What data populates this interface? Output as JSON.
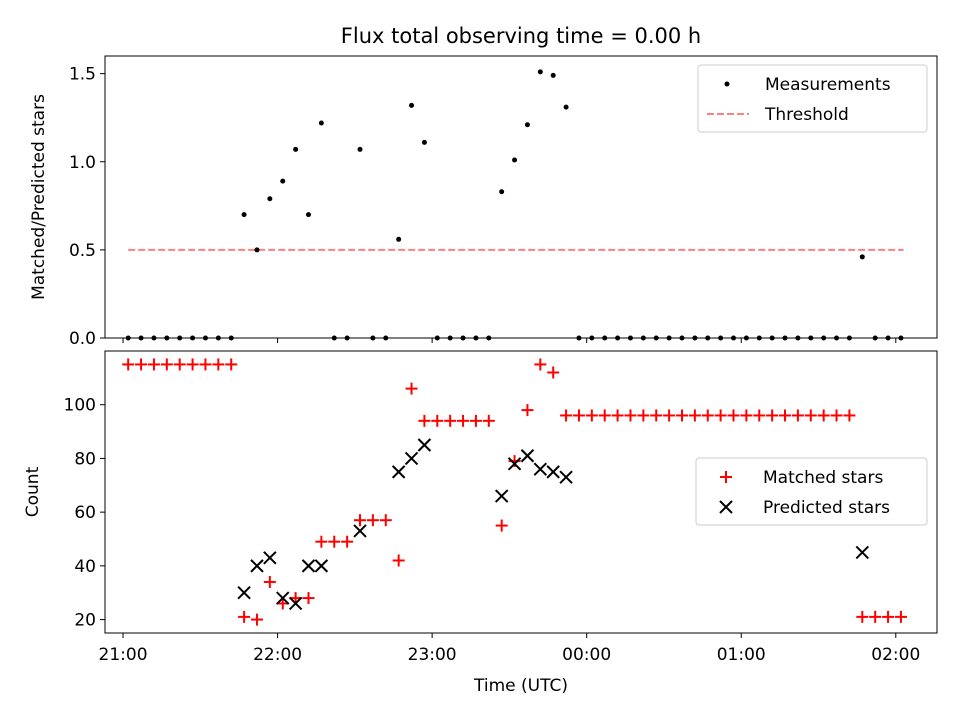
{
  "figure": {
    "title": "Flux total observing time = 0.00 h",
    "xlabel": "Time (UTC)"
  },
  "colors": {
    "measurements": "#000000",
    "threshold": "#ff7f7f",
    "matched": "#ff0000",
    "predicted": "#000000"
  },
  "chart_data": [
    {
      "type": "scatter",
      "ylabel": "Matched/Predicted stars",
      "xlim": [
        "20:53",
        "02:16"
      ],
      "ylim": [
        0,
        1.6
      ],
      "yticks": [
        0.0,
        0.5,
        1.0,
        1.5
      ],
      "ytick_labels": [
        "0.0",
        "0.5",
        "1.0",
        "1.5"
      ],
      "legend": {
        "position": "upper right",
        "entries": [
          "Measurements",
          "Threshold"
        ]
      },
      "series": [
        {
          "name": "Measurements",
          "marker": "dot",
          "points": [
            [
              "21:02",
              0
            ],
            [
              "21:07",
              0
            ],
            [
              "21:12",
              0
            ],
            [
              "21:17",
              0
            ],
            [
              "21:22",
              0
            ],
            [
              "21:27",
              0
            ],
            [
              "21:32",
              0
            ],
            [
              "21:37",
              0
            ],
            [
              "21:42",
              0
            ],
            [
              "21:47",
              0.7
            ],
            [
              "21:52",
              0.5
            ],
            [
              "21:57",
              0.79
            ],
            [
              "22:02",
              0.89
            ],
            [
              "22:07",
              1.07
            ],
            [
              "22:12",
              0.7
            ],
            [
              "22:17",
              1.22
            ],
            [
              "22:22",
              0
            ],
            [
              "22:27",
              0
            ],
            [
              "22:32",
              1.07
            ],
            [
              "22:37",
              0
            ],
            [
              "22:42",
              0
            ],
            [
              "22:47",
              0.56
            ],
            [
              "22:52",
              1.32
            ],
            [
              "22:57",
              1.11
            ],
            [
              "23:02",
              0
            ],
            [
              "23:07",
              0
            ],
            [
              "23:12",
              0
            ],
            [
              "23:17",
              0
            ],
            [
              "23:22",
              0
            ],
            [
              "23:27",
              0.83
            ],
            [
              "23:32",
              1.01
            ],
            [
              "23:37",
              1.21
            ],
            [
              "23:42",
              1.51
            ],
            [
              "23:47",
              1.49
            ],
            [
              "23:52",
              1.31
            ],
            [
              "23:57",
              0
            ],
            [
              "00:02",
              0
            ],
            [
              "00:07",
              0
            ],
            [
              "00:12",
              0
            ],
            [
              "00:17",
              0
            ],
            [
              "00:22",
              0
            ],
            [
              "00:27",
              0
            ],
            [
              "00:32",
              0
            ],
            [
              "00:37",
              0
            ],
            [
              "00:42",
              0
            ],
            [
              "00:47",
              0
            ],
            [
              "00:52",
              0
            ],
            [
              "00:57",
              0
            ],
            [
              "01:02",
              0
            ],
            [
              "01:07",
              0
            ],
            [
              "01:12",
              0
            ],
            [
              "01:17",
              0
            ],
            [
              "01:22",
              0
            ],
            [
              "01:27",
              0
            ],
            [
              "01:32",
              0
            ],
            [
              "01:37",
              0
            ],
            [
              "01:42",
              0
            ],
            [
              "01:47",
              0.46
            ],
            [
              "01:52",
              0
            ],
            [
              "01:57",
              0
            ],
            [
              "02:02",
              0
            ]
          ]
        },
        {
          "name": "Threshold",
          "style": "dashed",
          "points": [
            [
              "21:02",
              0.5
            ],
            [
              "02:03",
              0.5
            ]
          ]
        }
      ]
    },
    {
      "type": "scatter",
      "ylabel": "Count",
      "xlim": [
        "20:53",
        "02:16"
      ],
      "ylim": [
        15,
        120
      ],
      "yticks": [
        20,
        40,
        60,
        80,
        100
      ],
      "ytick_labels": [
        "20",
        "40",
        "60",
        "80",
        "100"
      ],
      "xticks": [
        "21:00",
        "22:00",
        "23:00",
        "00:00",
        "01:00",
        "02:00"
      ],
      "xtick_labels": [
        "21:00",
        "22:00",
        "23:00",
        "00:00",
        "01:00",
        "02:00"
      ],
      "legend": {
        "position": "center right",
        "entries": [
          "Matched stars",
          "Predicted stars"
        ]
      },
      "series": [
        {
          "name": "Matched stars",
          "marker": "plus",
          "points": [
            [
              "21:02",
              115
            ],
            [
              "21:07",
              115
            ],
            [
              "21:12",
              115
            ],
            [
              "21:17",
              115
            ],
            [
              "21:22",
              115
            ],
            [
              "21:27",
              115
            ],
            [
              "21:32",
              115
            ],
            [
              "21:37",
              115
            ],
            [
              "21:42",
              115
            ],
            [
              "21:47",
              21
            ],
            [
              "21:52",
              20
            ],
            [
              "21:57",
              34
            ],
            [
              "22:02",
              26
            ],
            [
              "22:07",
              28
            ],
            [
              "22:12",
              28
            ],
            [
              "22:17",
              49
            ],
            [
              "22:22",
              49
            ],
            [
              "22:27",
              49
            ],
            [
              "22:32",
              57
            ],
            [
              "22:37",
              57
            ],
            [
              "22:42",
              57
            ],
            [
              "22:47",
              42
            ],
            [
              "22:52",
              106
            ],
            [
              "22:57",
              94
            ],
            [
              "23:02",
              94
            ],
            [
              "23:07",
              94
            ],
            [
              "23:12",
              94
            ],
            [
              "23:17",
              94
            ],
            [
              "23:22",
              94
            ],
            [
              "23:27",
              55
            ],
            [
              "23:32",
              79
            ],
            [
              "23:37",
              98
            ],
            [
              "23:42",
              115
            ],
            [
              "23:47",
              112
            ],
            [
              "23:52",
              96
            ],
            [
              "23:57",
              96
            ],
            [
              "00:02",
              96
            ],
            [
              "00:07",
              96
            ],
            [
              "00:12",
              96
            ],
            [
              "00:17",
              96
            ],
            [
              "00:22",
              96
            ],
            [
              "00:27",
              96
            ],
            [
              "00:32",
              96
            ],
            [
              "00:37",
              96
            ],
            [
              "00:42",
              96
            ],
            [
              "00:47",
              96
            ],
            [
              "00:52",
              96
            ],
            [
              "00:57",
              96
            ],
            [
              "01:02",
              96
            ],
            [
              "01:07",
              96
            ],
            [
              "01:12",
              96
            ],
            [
              "01:17",
              96
            ],
            [
              "01:22",
              96
            ],
            [
              "01:27",
              96
            ],
            [
              "01:32",
              96
            ],
            [
              "01:37",
              96
            ],
            [
              "01:42",
              96
            ],
            [
              "01:47",
              21
            ],
            [
              "01:52",
              21
            ],
            [
              "01:57",
              21
            ],
            [
              "02:02",
              21
            ]
          ]
        },
        {
          "name": "Predicted stars",
          "marker": "x",
          "points": [
            [
              "21:47",
              30
            ],
            [
              "21:52",
              40
            ],
            [
              "21:57",
              43
            ],
            [
              "22:02",
              28
            ],
            [
              "22:07",
              26
            ],
            [
              "22:12",
              40
            ],
            [
              "22:17",
              40
            ],
            [
              "22:32",
              53
            ],
            [
              "22:47",
              75
            ],
            [
              "22:52",
              80
            ],
            [
              "22:57",
              85
            ],
            [
              "23:27",
              66
            ],
            [
              "23:32",
              78
            ],
            [
              "23:37",
              81
            ],
            [
              "23:42",
              76
            ],
            [
              "23:47",
              75
            ],
            [
              "23:52",
              73
            ],
            [
              "01:47",
              45
            ]
          ]
        }
      ]
    }
  ]
}
